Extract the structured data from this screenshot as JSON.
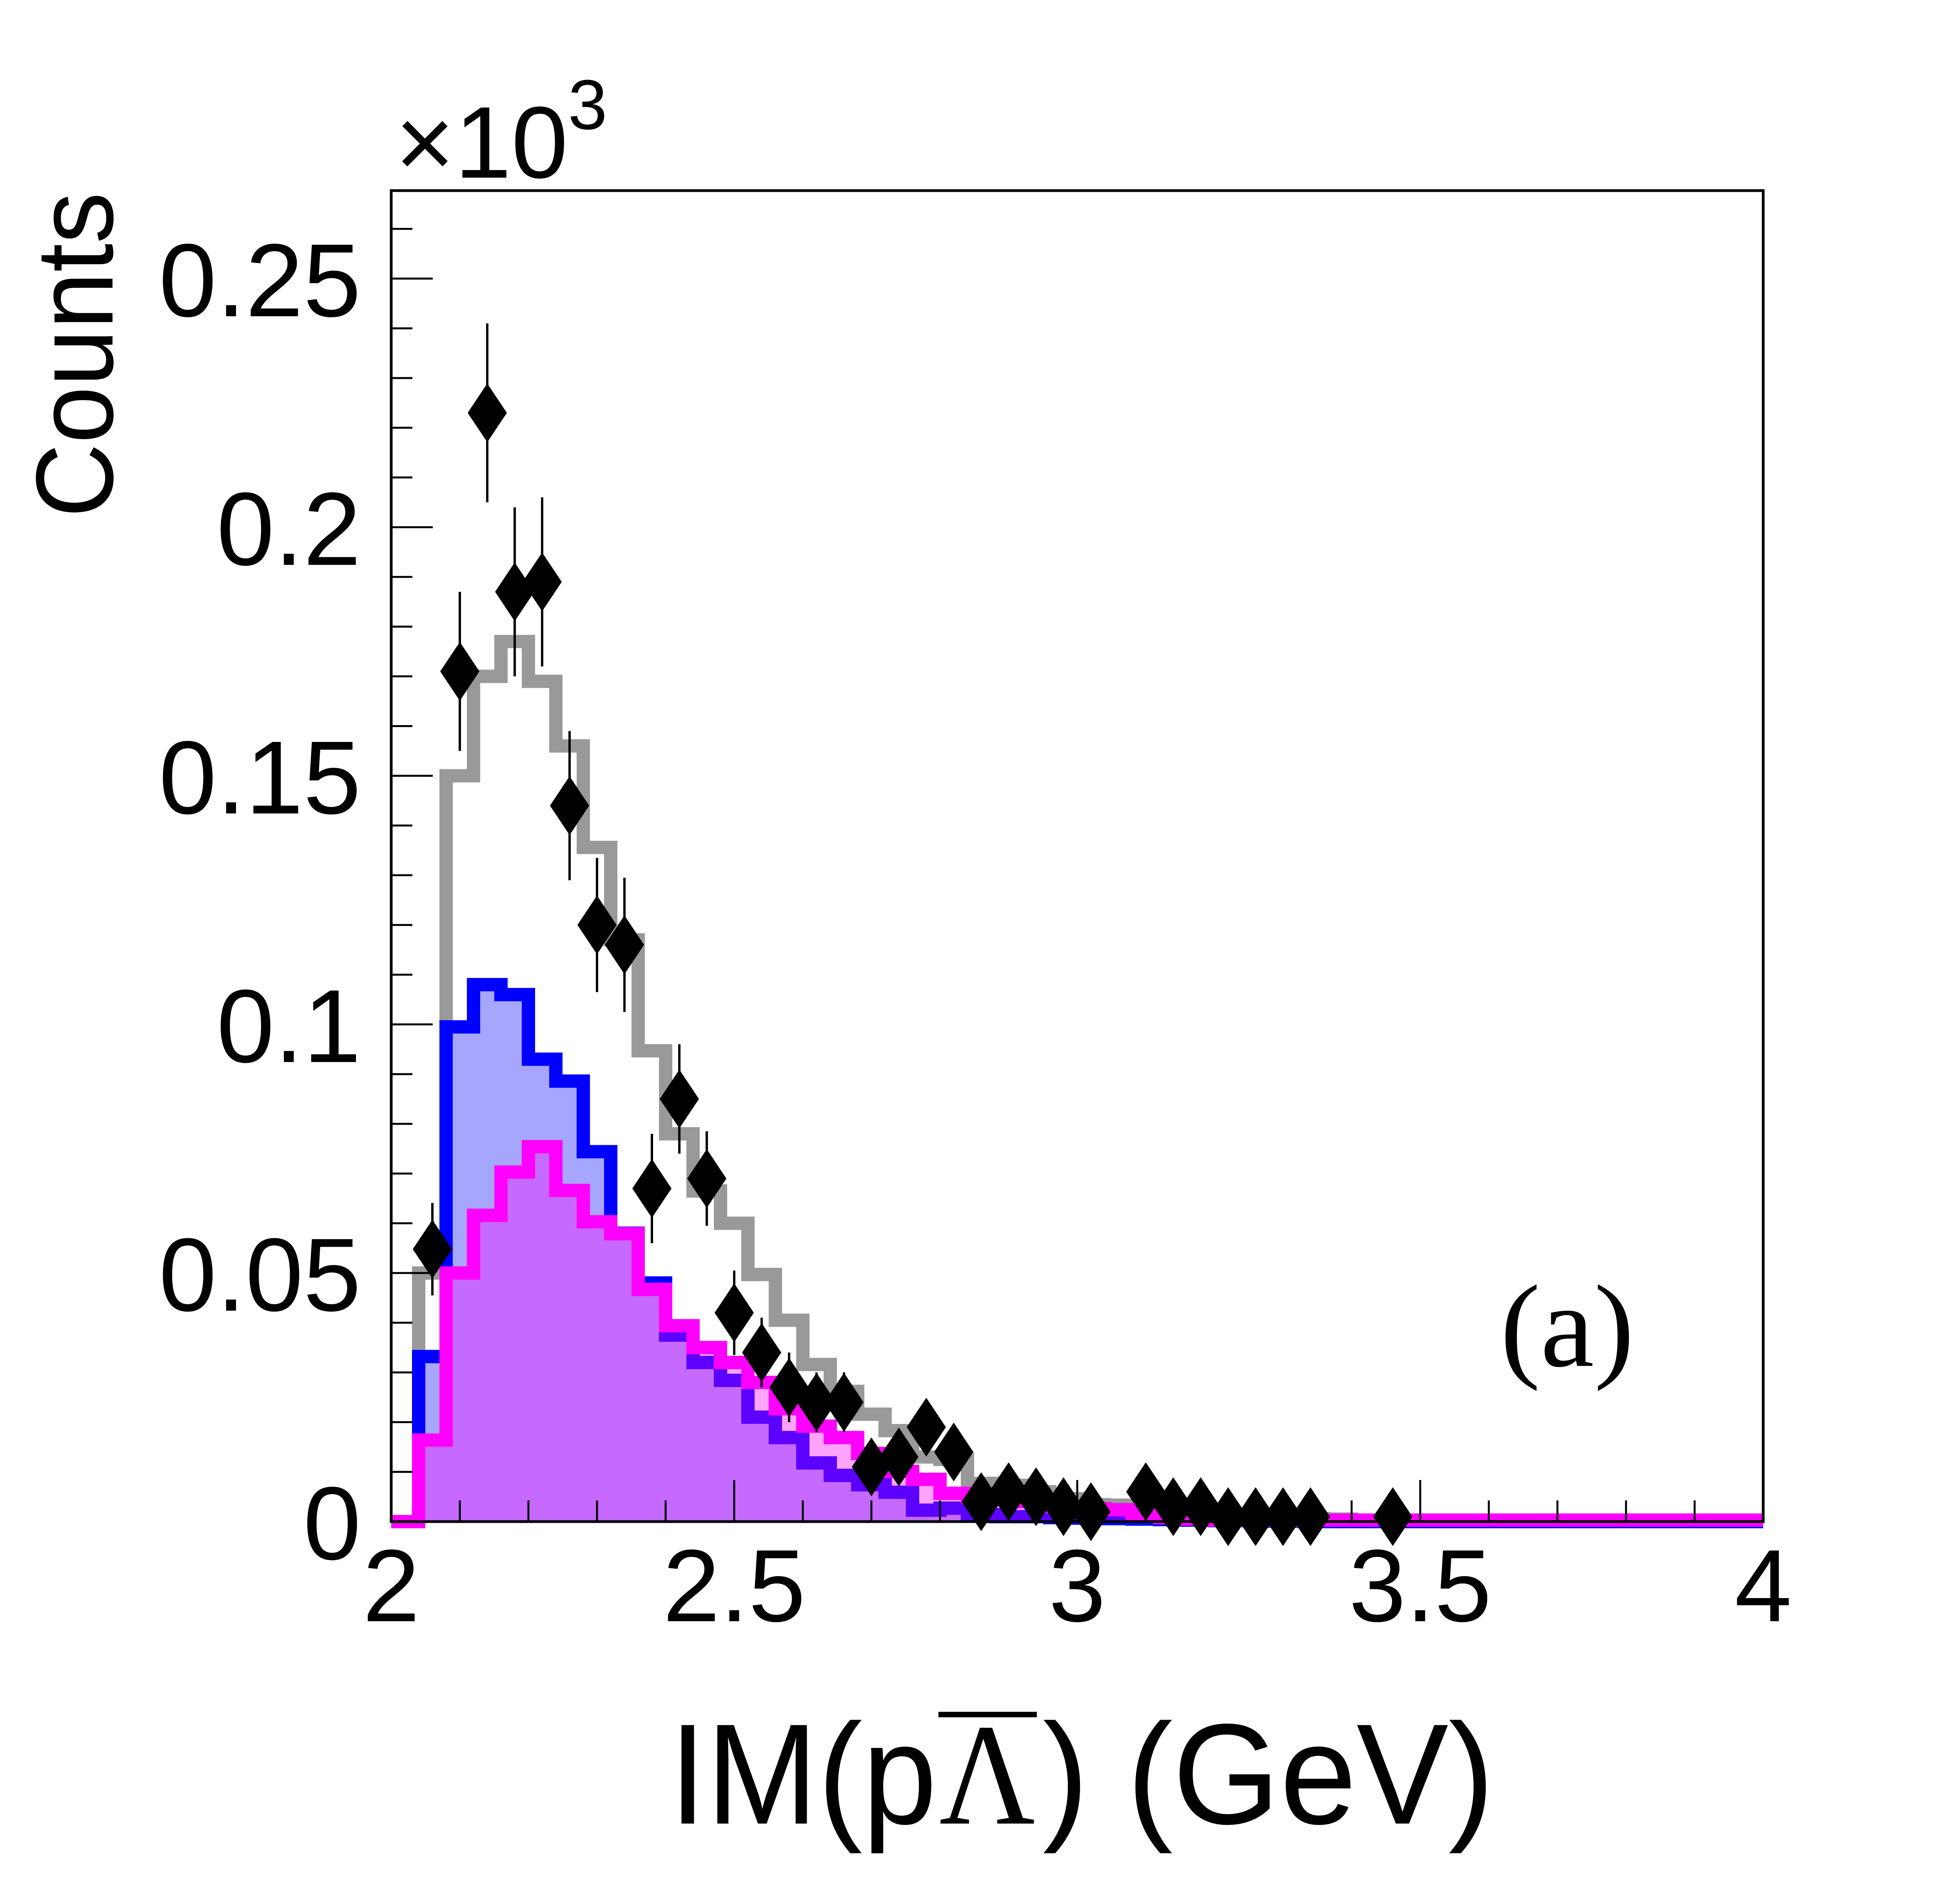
{
  "chart_data": {
    "type": "histogram",
    "title": "",
    "xlabel_parts": [
      "IM(p",
      "Λ",
      ") (GeV)"
    ],
    "ylabel": "Counts",
    "y_multiplier": {
      "base": "×10",
      "exponent": "3"
    },
    "panel_label": "(a)",
    "xlim": [
      2,
      4
    ],
    "ylim": [
      0,
      0.2677
    ],
    "x_ticks": [
      "2",
      "2.5",
      "3",
      "3.5",
      "4"
    ],
    "x_tick_values": [
      2,
      2.5,
      3,
      3.5,
      4
    ],
    "x_minor_step": 0.1,
    "y_ticks": [
      "0",
      "0.05",
      "0.1",
      "0.15",
      "0.2",
      "0.25"
    ],
    "y_tick_values": [
      0,
      0.05,
      0.1,
      0.15,
      0.2,
      0.25
    ],
    "y_minor_step": 0.01,
    "grid": false,
    "bin_start": 2.0,
    "bin_width": 0.04,
    "colors": {
      "total": "#999999",
      "blue": "#0000ff",
      "blue_fill": "#a6a6ff",
      "magenta": "#ff00ff",
      "magenta_fill": "rgba(255,0,255,0.36)",
      "data": "#000000"
    },
    "series": [
      {
        "name": "total (gray)",
        "values": [
          0,
          0.05,
          0.15,
          0.17,
          0.177,
          0.169,
          0.156,
          0.1356,
          0.117,
          0.0947,
          0.078,
          0.0665,
          0.06,
          0.0497,
          0.0405,
          0.0316,
          0.0262,
          0.0216,
          0.0183,
          0.013,
          0.0125,
          0.0077,
          0.0073,
          0.006,
          0.0046,
          0.0034,
          0.0033,
          0.0024,
          0.0018,
          0.0015,
          0.0012,
          0.001,
          0.0008,
          0.0006,
          0.0005,
          0.0003,
          0.0003,
          0.0003,
          0.0003,
          0.0003,
          0.0003,
          0.0003,
          0.0003,
          0.0003,
          0.0003,
          0.0003,
          0.0003,
          0.0003,
          0.0003,
          0.0003
        ]
      },
      {
        "name": "component (blue)",
        "values": [
          0,
          0.0332,
          0.0995,
          0.108,
          0.106,
          0.093,
          0.0886,
          0.0744,
          0.058,
          0.048,
          0.0375,
          0.032,
          0.0284,
          0.021,
          0.0169,
          0.0118,
          0.0093,
          0.0074,
          0.0059,
          0.0023,
          0.0027,
          0.0014,
          0.001,
          0.001,
          0.0008,
          0.0007,
          0.0006,
          0.0005,
          0.0004,
          0.0003,
          0.0002,
          0.0002,
          0.0001,
          0.0001,
          0,
          0,
          0,
          0,
          0,
          0,
          0,
          0,
          0,
          0,
          0,
          0,
          0,
          0,
          0,
          0
        ]
      },
      {
        "name": "component (magenta)",
        "values": [
          0,
          0.0164,
          0.05,
          0.0616,
          0.0703,
          0.0754,
          0.0666,
          0.0603,
          0.0579,
          0.0467,
          0.0394,
          0.035,
          0.032,
          0.028,
          0.0227,
          0.0192,
          0.0169,
          0.0137,
          0.0101,
          0.0085,
          0.0057,
          0.005,
          0.0045,
          0.004,
          0.003,
          0.0026,
          0.0024,
          0.0012,
          0.0008,
          0.0005,
          0.0003,
          0.0003,
          0.0003,
          0.0003,
          0.0003,
          0.0003,
          0.0003,
          0.0003,
          0.0003,
          0.0003,
          0.0003,
          0.0003,
          0.0003,
          0.0003,
          0.0003,
          0.0003,
          0.0003,
          0.0003,
          0.0003,
          0.0003
        ]
      }
    ],
    "data_points": {
      "name": "data",
      "x": [
        2.06,
        2.1,
        2.14,
        2.18,
        2.22,
        2.26,
        2.3,
        2.34,
        2.38,
        2.42,
        2.46,
        2.5,
        2.54,
        2.58,
        2.62,
        2.66,
        2.7,
        2.74,
        2.78,
        2.82,
        2.86,
        2.9,
        2.94,
        2.98,
        3.02,
        3.1,
        3.14,
        3.18,
        3.22,
        3.26,
        3.3,
        3.34,
        3.46
      ],
      "y": [
        0.0548,
        0.171,
        0.223,
        0.187,
        0.189,
        0.144,
        0.12,
        0.116,
        0.067,
        0.085,
        0.069,
        0.042,
        0.034,
        0.027,
        0.024,
        0.024,
        0.011,
        0.013,
        0.019,
        0.014,
        0.004,
        0.006,
        0.005,
        0.003,
        0.002,
        0.006,
        0.003,
        0.003,
        0.001,
        0.001,
        0.001,
        0.001,
        0.001
      ],
      "err": [
        0.0093,
        0.016,
        0.018,
        0.017,
        0.017,
        0.015,
        0.0135,
        0.0135,
        0.011,
        0.011,
        0.0095,
        0.0085,
        0.007,
        0.007,
        0.006,
        0.006,
        0.004,
        0.004,
        0.005,
        0.004,
        0.002,
        0.003,
        0.002,
        0.002,
        0.002,
        0.003,
        0.002,
        0.002,
        0.001,
        0.001,
        0.001,
        0.001,
        0.001
      ]
    }
  }
}
